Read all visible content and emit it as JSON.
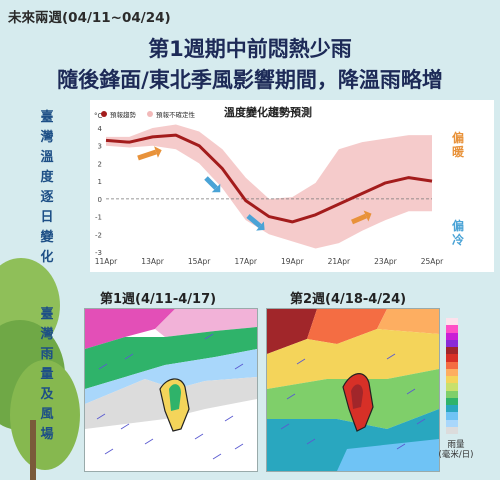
{
  "header": {
    "tag": "未來兩週(04/11~04/24)",
    "title_line1": "第1週期中前悶熱少雨",
    "title_line2": "隨後鋒面/東北季風影響期間，降溫雨略增"
  },
  "side_labels": {
    "temp": "臺灣溫度逐日變化",
    "rain": "臺灣雨量及風場"
  },
  "chart_data": {
    "type": "line",
    "title": "溫度變化趨勢預測",
    "unit": "°C",
    "legend": [
      {
        "name": "預報趨勢",
        "color": "#a31c1c"
      },
      {
        "name": "預報不確定性",
        "color": "#f2b9b9"
      }
    ],
    "x": [
      "11Apr",
      "12Apr",
      "13Apr",
      "14Apr",
      "15Apr",
      "16Apr",
      "17Apr",
      "18Apr",
      "19Apr",
      "20Apr",
      "21Apr",
      "22Apr",
      "23Apr",
      "24Apr",
      "25Apr"
    ],
    "x_tick_labels": [
      "11Apr",
      "13Apr",
      "15Apr",
      "17Apr",
      "19Apr",
      "21Apr",
      "23Apr",
      "25Apr"
    ],
    "series": [
      {
        "name": "預報趨勢",
        "values": [
          3.3,
          3.2,
          3.5,
          3.6,
          3.0,
          1.7,
          -0.1,
          -1.0,
          -1.3,
          -0.9,
          -0.3,
          0.3,
          0.9,
          1.2,
          1.0
        ]
      }
    ],
    "band_upper": [
      3.5,
      3.5,
      4.0,
      4.2,
      3.8,
      2.8,
      1.2,
      0.0,
      0.1,
      0.9,
      2.8,
      3.2,
      3.4,
      3.6,
      3.6
    ],
    "band_lower": [
      3.0,
      2.9,
      3.0,
      2.8,
      2.0,
      0.6,
      -1.2,
      -2.0,
      -2.4,
      -2.8,
      -2.5,
      -1.8,
      -1.2,
      -0.7,
      -0.7
    ],
    "ylim": [
      -3,
      4
    ],
    "y_ticks": [
      -3,
      -2,
      -1,
      0,
      1,
      2,
      3,
      4
    ],
    "annotations": {
      "warm": "偏暖",
      "cold": "偏冷"
    },
    "colors": {
      "arrow_orange": "#e8923a",
      "arrow_blue": "#4aa3d6",
      "zero_line": "#777777"
    }
  },
  "maps": {
    "week1_label": "第1週(4/11-4/17)",
    "week2_label": "第2週(4/18-4/24)"
  },
  "colorbar": {
    "caption": "雨量\n(毫米/日)",
    "colors": [
      "#fde1ec",
      "#ff4fc6",
      "#c91fd6",
      "#8a2bd6",
      "#a1262a",
      "#d73027",
      "#f46d43",
      "#fdae61",
      "#f4d45a",
      "#c8e06c",
      "#7fcf6a",
      "#2fb36a",
      "#29a7bf",
      "#6fc3f5",
      "#a9d7fb",
      "#dcdcdc"
    ]
  }
}
